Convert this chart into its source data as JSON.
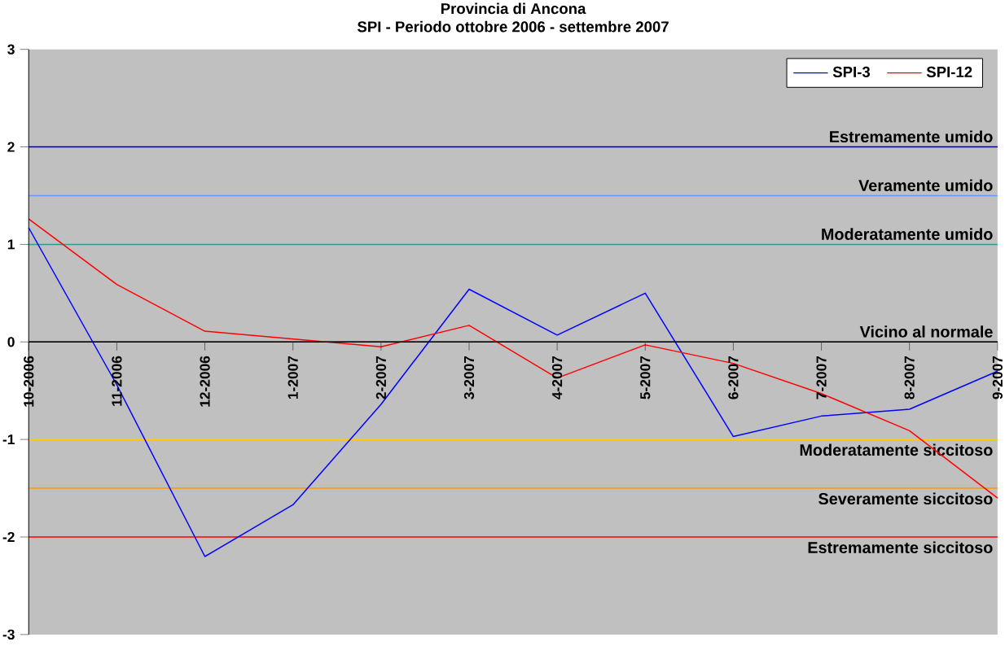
{
  "chart_data": {
    "type": "line",
    "title": "Provincia di Ancona",
    "subtitle": "SPI - Periodo ottobre 2006 - settembre 2007",
    "categories": [
      "10-2006",
      "11-2006",
      "12-2006",
      "1-2007",
      "2-2007",
      "3-2007",
      "4-2007",
      "5-2007",
      "6-2007",
      "7-2007",
      "8-2007",
      "9-2007"
    ],
    "series": [
      {
        "name": "SPI-3",
        "color": "#0000ff",
        "values": [
          1.17,
          -0.44,
          -2.2,
          -1.67,
          -0.64,
          0.54,
          0.07,
          0.5,
          -0.97,
          -0.76,
          -0.69,
          -0.3
        ]
      },
      {
        "name": "SPI-12",
        "color": "#ff0000",
        "values": [
          1.26,
          0.59,
          0.11,
          0.03,
          -0.05,
          0.17,
          -0.37,
          -0.03,
          -0.22,
          -0.53,
          -0.91,
          -1.6
        ]
      }
    ],
    "ylim": [
      -3,
      3
    ],
    "yticks": [
      -3,
      -2,
      -1,
      0,
      1,
      2,
      3
    ],
    "ref_lines": [
      {
        "axis": "y",
        "value": 2,
        "label": "Estremamente umido",
        "color": "#000080"
      },
      {
        "axis": "y",
        "value": 1.5,
        "label": "Veramente umido",
        "color": "#6699ff"
      },
      {
        "axis": "y",
        "value": 1,
        "label": "Moderatamente umido",
        "color": "#339999"
      },
      {
        "axis": "y",
        "value": 0,
        "label": "Vicino al normale",
        "color": "#000000"
      },
      {
        "axis": "y",
        "value": -1,
        "label": "Moderatamente siccitoso",
        "color": "#ffcc00"
      },
      {
        "axis": "y",
        "value": -1.5,
        "label": "Severamente siccitoso",
        "color": "#ff9900"
      },
      {
        "axis": "y",
        "value": -2,
        "label": "Estremamente siccitoso",
        "color": "#ff0000"
      }
    ],
    "grid": false,
    "legend": "top right",
    "marker": "none",
    "line_style": "solid"
  }
}
